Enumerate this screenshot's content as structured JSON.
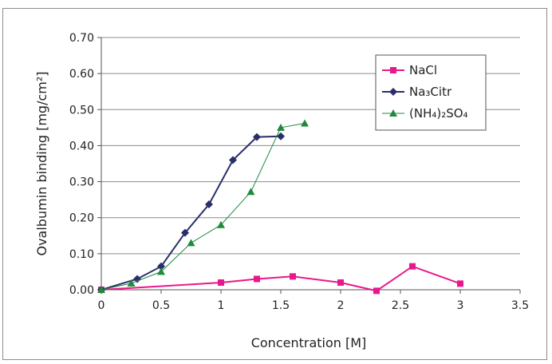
{
  "chart_data": {
    "type": "line",
    "xlabel": "Concentration [M]",
    "ylabel": "Ovalbumin binding [mg/cm²]",
    "xlim": [
      0,
      3.5
    ],
    "ylim": [
      0,
      0.7
    ],
    "x_ticks": [
      "0",
      "0.5",
      "1",
      "1.5",
      "2",
      "2.5",
      "3",
      "3.5"
    ],
    "y_ticks": [
      "0.00",
      "0.10",
      "0.20",
      "0.30",
      "0.40",
      "0.50",
      "0.60",
      "0.70"
    ],
    "grid": "horizontal",
    "legend_position": "top-right",
    "series": [
      {
        "name": "NaCl",
        "color": "#e8188c",
        "marker": "square",
        "points": [
          [
            0,
            0.0
          ],
          [
            1.0,
            0.02
          ],
          [
            1.3,
            0.03
          ],
          [
            1.6,
            0.037
          ],
          [
            2.0,
            0.02
          ],
          [
            2.3,
            -0.003
          ],
          [
            2.6,
            0.065
          ],
          [
            3.0,
            0.017
          ]
        ]
      },
      {
        "name": "Na₃Citr",
        "color": "#2a2f6b",
        "marker": "diamond",
        "points": [
          [
            0,
            0.0
          ],
          [
            0.3,
            0.03
          ],
          [
            0.5,
            0.065
          ],
          [
            0.7,
            0.158
          ],
          [
            0.9,
            0.237
          ],
          [
            1.1,
            0.36
          ],
          [
            1.3,
            0.424
          ],
          [
            1.5,
            0.426
          ]
        ]
      },
      {
        "name": "(NH₄)₂SO₄",
        "color": "#1f8a3c",
        "marker": "triangle",
        "points": [
          [
            0,
            0.0
          ],
          [
            0.25,
            0.018
          ],
          [
            0.5,
            0.05
          ],
          [
            0.75,
            0.13
          ],
          [
            1.0,
            0.18
          ],
          [
            1.25,
            0.272
          ],
          [
            1.5,
            0.45
          ],
          [
            1.7,
            0.462
          ]
        ]
      }
    ]
  }
}
